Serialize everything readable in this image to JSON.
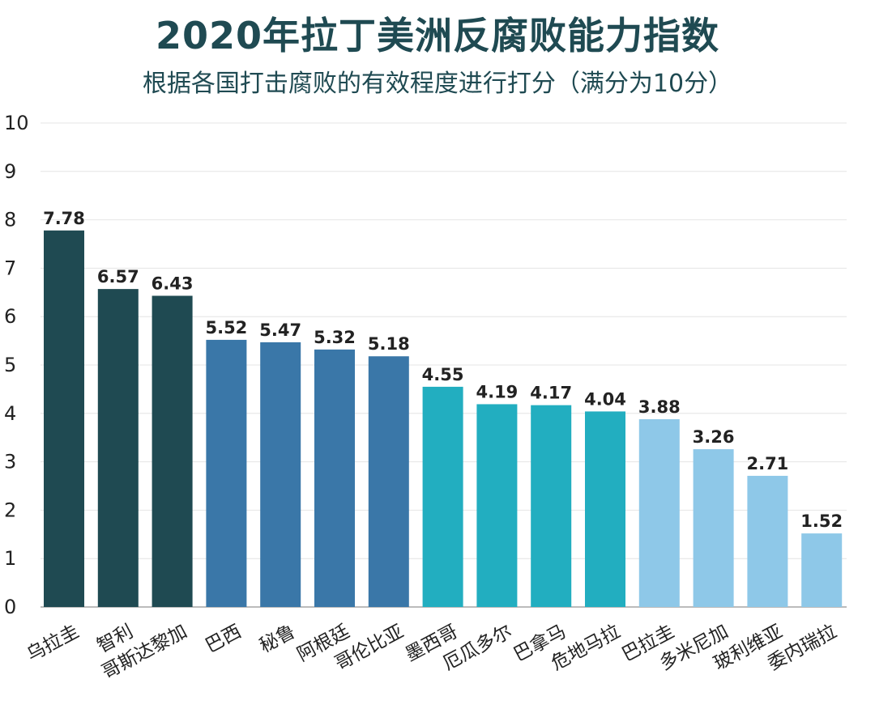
{
  "title": "2020年拉丁美洲反腐败能力指数",
  "subtitle": "根据各国打击腐败的有效程度进行打分（满分为10分）",
  "chart_data": {
    "type": "bar",
    "title": "2020年拉丁美洲反腐败能力指数",
    "subtitle": "根据各国打击腐败的有效程度进行打分（满分为10分）",
    "categories": [
      "乌拉圭",
      "智利",
      "哥斯达黎加",
      "巴西",
      "秘鲁",
      "阿根廷",
      "哥伦比亚",
      "墨西哥",
      "厄瓜多尔",
      "巴拿马",
      "危地马拉",
      "巴拉圭",
      "多米尼加",
      "玻利维亚",
      "委内瑞拉"
    ],
    "values": [
      7.78,
      6.57,
      6.43,
      5.52,
      5.47,
      5.32,
      5.18,
      4.55,
      4.19,
      4.17,
      4.04,
      3.88,
      3.26,
      2.71,
      1.52
    ],
    "value_labels": [
      "7.78",
      "6.57",
      "6.43",
      "5.52",
      "5.47",
      "5.32",
      "5.18",
      "4.55",
      "4.19",
      "4.17",
      "4.04",
      "3.88",
      "3.26",
      "2.71",
      "1.52"
    ],
    "bar_colors": [
      "#1f4a52",
      "#1f4a52",
      "#1f4a52",
      "#3a77a8",
      "#3a77a8",
      "#3a77a8",
      "#3a77a8",
      "#22aec0",
      "#22aec0",
      "#22aec0",
      "#22aec0",
      "#8ec8e8",
      "#8ec8e8",
      "#8ec8e8",
      "#8ec8e8"
    ],
    "ylim": [
      0,
      10
    ],
    "yticks": [
      "0",
      "1",
      "2",
      "3",
      "4",
      "5",
      "6",
      "7",
      "8",
      "9",
      "10"
    ],
    "xlabel": "",
    "ylabel": "",
    "grid": true,
    "legend": "none"
  }
}
